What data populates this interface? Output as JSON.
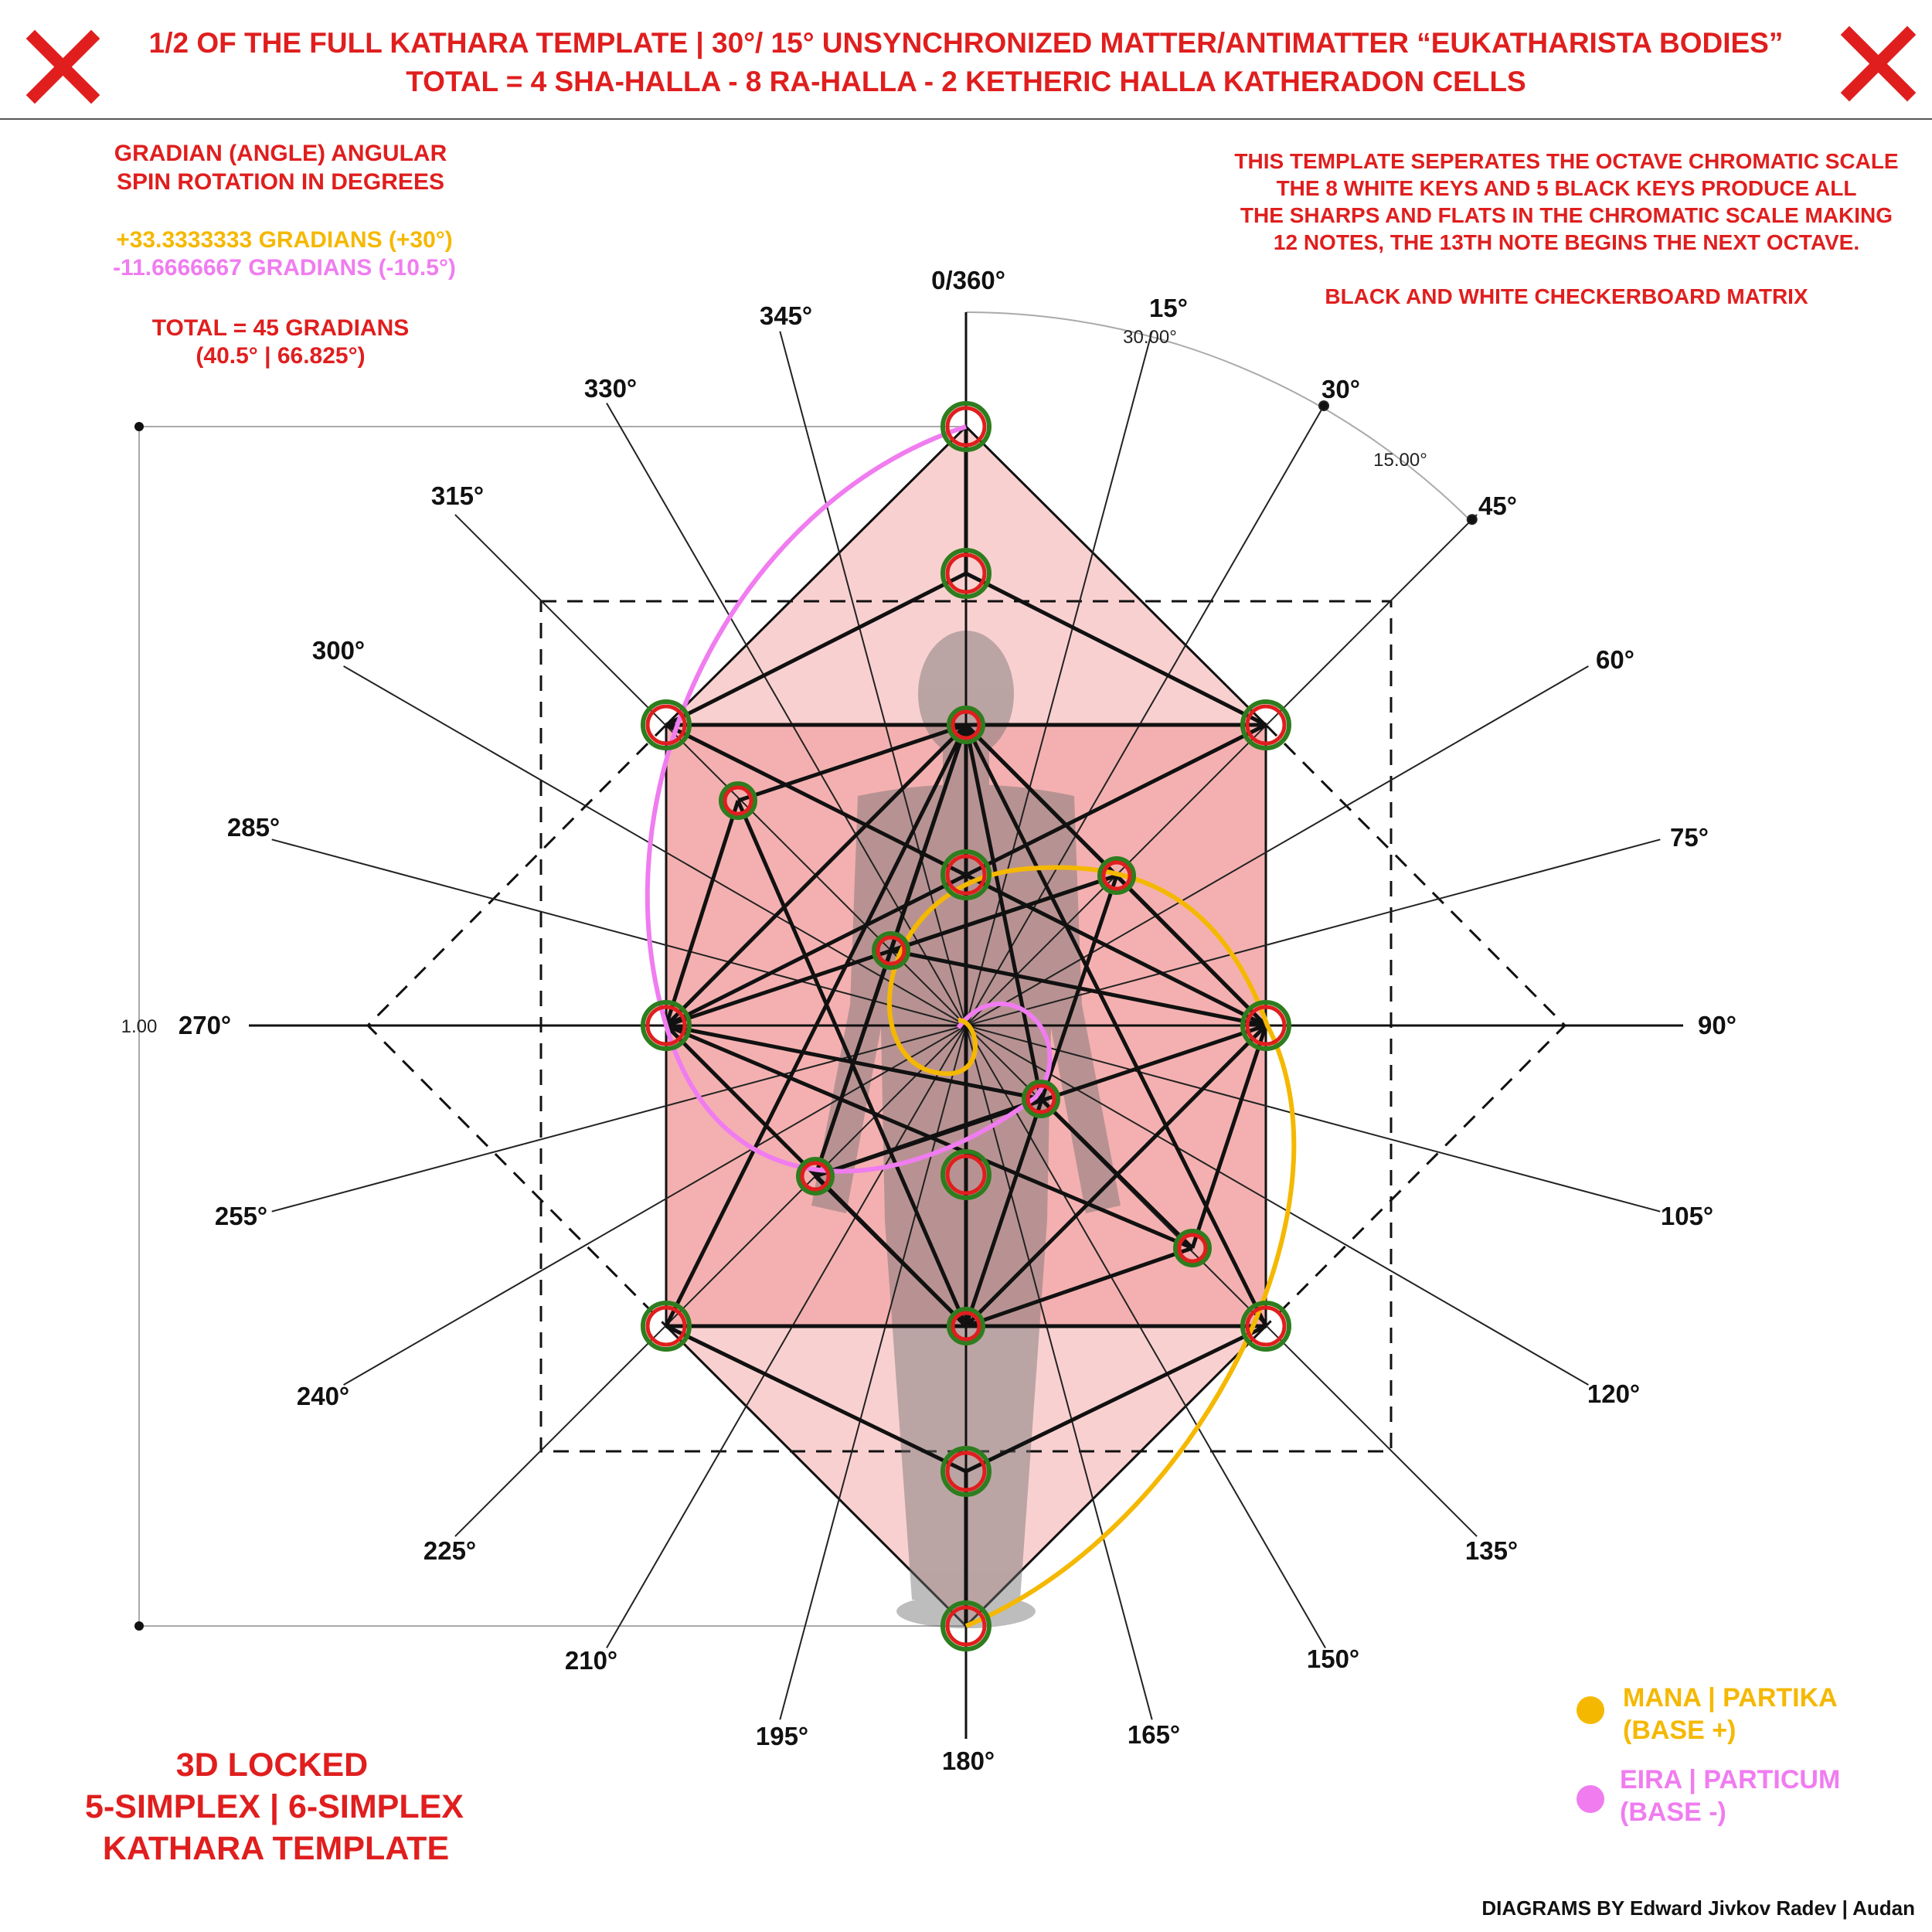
{
  "header": {
    "line1": "1/2 OF THE FULL KATHARA TEMPLATE | 30°/ 15° UNSYNCHRONIZED MATTER/ANTIMATTER “EUKATHARISTA BODIES”",
    "line2": "TOTAL = 4 SHA-HALLA - 8 RA-HALLA - 2 KETHERIC HALLA KATHERADON CELLS"
  },
  "left_note": {
    "title1": "GRADIAN (ANGLE) ANGULAR",
    "title2": "SPIN ROTATION IN DEGREES",
    "plus": "+33.3333333 GRADIANS (+30°)",
    "minus": "-11.6666667 GRADIANS (-10.5°)",
    "total1": "TOTAL = 45 GRADIANS",
    "total2": "(40.5° | 66.825°)"
  },
  "right_note": {
    "line1": "THIS TEMPLATE SEPERATES THE OCTAVE CHROMATIC SCALE",
    "line2": "THE 8 WHITE KEYS AND 5 BLACK KEYS PRODUCE ALL",
    "line3": "THE SHARPS AND FLATS IN THE CHROMATIC SCALE MAKING",
    "line4": "12 NOTES, THE 13TH NOTE BEGINS THE NEXT OCTAVE.",
    "line5": "BLACK AND WHITE CHECKERBOARD MATRIX"
  },
  "angles": {
    "a0": "0/360°",
    "a15": "15°",
    "a30": "30°",
    "a45": "45°",
    "a60": "60°",
    "a75": "75°",
    "a90": "90°",
    "a105": "105°",
    "a120": "120°",
    "a135": "135°",
    "a150": "150°",
    "a165": "165°",
    "a180": "180°",
    "a195": "195°",
    "a210": "210°",
    "a225": "225°",
    "a240": "240°",
    "a255": "255°",
    "a270": "270°",
    "a285": "285°",
    "a300": "300°",
    "a315": "315°",
    "a330": "330°",
    "a345": "345°"
  },
  "dimensions": {
    "arc1": "30.00°",
    "arc2": "15.00°",
    "height": "1.00"
  },
  "legend": {
    "mana1": "MANA | PARTIKA",
    "mana2": "(BASE +)",
    "eira1": "EIRA | PARTICUM",
    "eira2": "(BASE -)"
  },
  "footer_left": {
    "line1": "3D LOCKED",
    "line2": "5-SIMPLEX | 6-SIMPLEX",
    "line3": "KATHARA TEMPLATE"
  },
  "credit": "DIAGRAMS BY Edward Jivkov Radev | Audan",
  "colors": {
    "red": "#e01e1e",
    "gold": "#f5b800",
    "pink": "#f07cf0",
    "green": "#2e7d1e",
    "fill_light": "#f9d0d0",
    "fill_mid": "#f4b0b0"
  }
}
